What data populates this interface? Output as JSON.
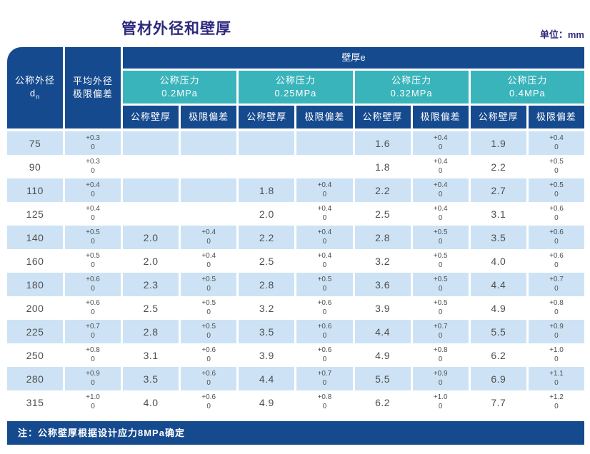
{
  "page": {
    "title": "管材外径和壁厚",
    "unit_label": "单位：mm",
    "note": "注：公称壁厚根据设计应力8MPa确定"
  },
  "colors": {
    "header_blue": "#164a8e",
    "teal": "#3ab4bb",
    "row_light_blue": "#cde3f5",
    "title_navy": "#2d2a7e",
    "body_text": "#4f4f4f"
  },
  "table": {
    "header": {
      "col1_line1": "公称外径",
      "col1_line2_main": "d",
      "col1_line2_sub": "n",
      "col2_line1": "平均外径",
      "col2_line2": "极限偏差",
      "span_title": "壁厚e",
      "pressure_groups": [
        {
          "line1": "公称压力",
          "line2": "0.2MPa"
        },
        {
          "line1": "公称压力",
          "line2": "0.25MPa"
        },
        {
          "line1": "公称压力",
          "line2": "0.32MPa"
        },
        {
          "line1": "公称压力",
          "line2": "0.4MPa"
        }
      ],
      "sub_labels": [
        "公称壁厚",
        "极限偏差"
      ]
    },
    "rows": [
      {
        "dn": "75",
        "avg_dev": [
          "+0.3",
          "0"
        ],
        "t": [
          "",
          "",
          "1.6",
          "1.9"
        ],
        "d": [
          [
            "",
            ""
          ],
          [
            "",
            ""
          ],
          [
            "+0.4",
            "0"
          ],
          [
            "+0.4",
            "0"
          ]
        ]
      },
      {
        "dn": "90",
        "avg_dev": [
          "+0.3",
          "0"
        ],
        "t": [
          "",
          "",
          "1.8",
          "2.2"
        ],
        "d": [
          [
            "",
            ""
          ],
          [
            "",
            ""
          ],
          [
            "+0.4",
            "0"
          ],
          [
            "+0.5",
            "0"
          ]
        ]
      },
      {
        "dn": "110",
        "avg_dev": [
          "+0.4",
          "0"
        ],
        "t": [
          "",
          "1.8",
          "2.2",
          "2.7"
        ],
        "d": [
          [
            "",
            ""
          ],
          [
            "+0.4",
            "0"
          ],
          [
            "+0.4",
            "0"
          ],
          [
            "+0.5",
            "0"
          ]
        ]
      },
      {
        "dn": "125",
        "avg_dev": [
          "+0.4",
          "0"
        ],
        "t": [
          "",
          "2.0",
          "2.5",
          "3.1"
        ],
        "d": [
          [
            "",
            ""
          ],
          [
            "+0.4",
            "0"
          ],
          [
            "+0.4",
            "0"
          ],
          [
            "+0.6",
            "0"
          ]
        ]
      },
      {
        "dn": "140",
        "avg_dev": [
          "+0.5",
          "0"
        ],
        "t": [
          "2.0",
          "2.2",
          "2.8",
          "3.5"
        ],
        "d": [
          [
            "+0.4",
            "0"
          ],
          [
            "+0.4",
            "0"
          ],
          [
            "+0.5",
            "0"
          ],
          [
            "+0.6",
            "0"
          ]
        ]
      },
      {
        "dn": "160",
        "avg_dev": [
          "+0.5",
          "0"
        ],
        "t": [
          "2.0",
          "2.5",
          "3.2",
          "4.0"
        ],
        "d": [
          [
            "+0.4",
            "0"
          ],
          [
            "+0.4",
            "0"
          ],
          [
            "+0.5",
            "0"
          ],
          [
            "+0.6",
            "0"
          ]
        ]
      },
      {
        "dn": "180",
        "avg_dev": [
          "+0.6",
          "0"
        ],
        "t": [
          "2.3",
          "2.8",
          "3.6",
          "4.4"
        ],
        "d": [
          [
            "+0.5",
            "0"
          ],
          [
            "+0.5",
            "0"
          ],
          [
            "+0.5",
            "0"
          ],
          [
            "+0.7",
            "0"
          ]
        ]
      },
      {
        "dn": "200",
        "avg_dev": [
          "+0.6",
          "0"
        ],
        "t": [
          "2.5",
          "3.2",
          "3.9",
          "4.9"
        ],
        "d": [
          [
            "+0.5",
            "0"
          ],
          [
            "+0.6",
            "0"
          ],
          [
            "+0.5",
            "0"
          ],
          [
            "+0.8",
            "0"
          ]
        ]
      },
      {
        "dn": "225",
        "avg_dev": [
          "+0.7",
          "0"
        ],
        "t": [
          "2.8",
          "3.5",
          "4.4",
          "5.5"
        ],
        "d": [
          [
            "+0.5",
            "0"
          ],
          [
            "+0.6",
            "0"
          ],
          [
            "+0.7",
            "0"
          ],
          [
            "+0.9",
            "0"
          ]
        ]
      },
      {
        "dn": "250",
        "avg_dev": [
          "+0.8",
          "0"
        ],
        "t": [
          "3.1",
          "3.9",
          "4.9",
          "6.2"
        ],
        "d": [
          [
            "+0.6",
            "0"
          ],
          [
            "+0.6",
            "0"
          ],
          [
            "+0.8",
            "0"
          ],
          [
            "+1.0",
            "0"
          ]
        ]
      },
      {
        "dn": "280",
        "avg_dev": [
          "+0.9",
          "0"
        ],
        "t": [
          "3.5",
          "4.4",
          "5.5",
          "6.9"
        ],
        "d": [
          [
            "+0.6",
            "0"
          ],
          [
            "+0.7",
            "0"
          ],
          [
            "+0.9",
            "0"
          ],
          [
            "+1.1",
            "0"
          ]
        ]
      },
      {
        "dn": "315",
        "avg_dev": [
          "+1.0",
          "0"
        ],
        "t": [
          "4.0",
          "4.9",
          "6.2",
          "7.7"
        ],
        "d": [
          [
            "+0.6",
            "0"
          ],
          [
            "+0.8",
            "0"
          ],
          [
            "+1.0",
            "0"
          ],
          [
            "+1.2",
            "0"
          ]
        ]
      }
    ]
  }
}
